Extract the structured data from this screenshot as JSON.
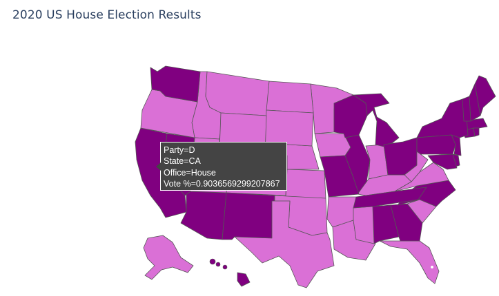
{
  "title": "2020 US House Election Results",
  "colors": {
    "D": "#800080",
    "R": "#da70d6",
    "border": "#555555",
    "tooltip_bg": "#444444"
  },
  "chart_data": {
    "type": "choropleth",
    "title": "2020 US House Election Results",
    "scope": "usa",
    "color_field": "Party",
    "states": [
      {
        "state": "AL",
        "party": "D"
      },
      {
        "state": "AK",
        "party": "R"
      },
      {
        "state": "AZ",
        "party": "D"
      },
      {
        "state": "AR",
        "party": "R"
      },
      {
        "state": "CA",
        "party": "D"
      },
      {
        "state": "CO",
        "party": "R"
      },
      {
        "state": "CT",
        "party": "D"
      },
      {
        "state": "DE",
        "party": "D"
      },
      {
        "state": "FL",
        "party": "R"
      },
      {
        "state": "GA",
        "party": "D"
      },
      {
        "state": "HI",
        "party": "D"
      },
      {
        "state": "ID",
        "party": "R"
      },
      {
        "state": "IL",
        "party": "D"
      },
      {
        "state": "IN",
        "party": "R"
      },
      {
        "state": "IA",
        "party": "R"
      },
      {
        "state": "KS",
        "party": "R"
      },
      {
        "state": "KY",
        "party": "R"
      },
      {
        "state": "LA",
        "party": "R"
      },
      {
        "state": "ME",
        "party": "D"
      },
      {
        "state": "MD",
        "party": "D"
      },
      {
        "state": "MA",
        "party": "D"
      },
      {
        "state": "MI",
        "party": "D"
      },
      {
        "state": "MN",
        "party": "R"
      },
      {
        "state": "MS",
        "party": "R"
      },
      {
        "state": "MO",
        "party": "D"
      },
      {
        "state": "MT",
        "party": "R"
      },
      {
        "state": "NE",
        "party": "R"
      },
      {
        "state": "NV",
        "party": "D"
      },
      {
        "state": "NH",
        "party": "D"
      },
      {
        "state": "NJ",
        "party": "D"
      },
      {
        "state": "NM",
        "party": "D"
      },
      {
        "state": "NY",
        "party": "D"
      },
      {
        "state": "NC",
        "party": "D"
      },
      {
        "state": "ND",
        "party": "R"
      },
      {
        "state": "OH",
        "party": "D"
      },
      {
        "state": "OK",
        "party": "R"
      },
      {
        "state": "OR",
        "party": "R"
      },
      {
        "state": "PA",
        "party": "D"
      },
      {
        "state": "RI",
        "party": "D"
      },
      {
        "state": "SC",
        "party": "R"
      },
      {
        "state": "SD",
        "party": "R"
      },
      {
        "state": "TN",
        "party": "D"
      },
      {
        "state": "TX",
        "party": "R"
      },
      {
        "state": "UT",
        "party": "R"
      },
      {
        "state": "VT",
        "party": "D"
      },
      {
        "state": "VA",
        "party": "R"
      },
      {
        "state": "WA",
        "party": "D"
      },
      {
        "state": "WV",
        "party": "R"
      },
      {
        "state": "WI",
        "party": "D"
      },
      {
        "state": "WY",
        "party": "R"
      }
    ]
  },
  "tooltip": {
    "line1": "Party=D",
    "line2": "State=CA",
    "line3": "Office=House",
    "line4": "Vote %=0.9036569299207867"
  }
}
